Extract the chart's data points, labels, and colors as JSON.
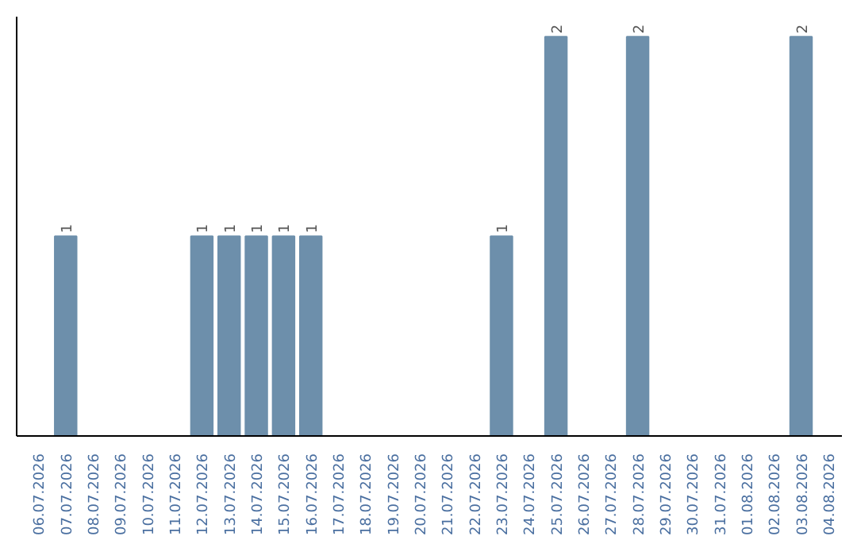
{
  "chart_data": {
    "type": "bar",
    "categories": [
      "06.07.2026",
      "07.07.2026",
      "08.07.2026",
      "09.07.2026",
      "10.07.2026",
      "11.07.2026",
      "12.07.2026",
      "13.07.2026",
      "14.07.2026",
      "15.07.2026",
      "16.07.2026",
      "17.07.2026",
      "18.07.2026",
      "19.07.2026",
      "20.07.2026",
      "21.07.2026",
      "22.07.2026",
      "23.07.2026",
      "24.07.2026",
      "25.07.2026",
      "26.07.2026",
      "27.07.2026",
      "28.07.2026",
      "29.07.2026",
      "30.07.2026",
      "31.07.2026",
      "01.08.2026",
      "02.08.2026",
      "03.08.2026",
      "04.08.2026"
    ],
    "values": [
      0,
      1,
      0,
      0,
      0,
      0,
      1,
      1,
      1,
      1,
      1,
      0,
      0,
      0,
      0,
      0,
      0,
      1,
      0,
      2,
      0,
      0,
      2,
      0,
      0,
      0,
      0,
      0,
      2,
      0
    ],
    "value_labels": [
      null,
      "1",
      null,
      null,
      null,
      null,
      "1",
      "1",
      "1",
      "1",
      "1",
      null,
      null,
      null,
      null,
      null,
      null,
      "1",
      null,
      "2",
      null,
      null,
      "2",
      null,
      null,
      null,
      null,
      null,
      "2",
      null
    ],
    "color": "#6d8fab",
    "grid": false,
    "tick_labels": "x"
  }
}
